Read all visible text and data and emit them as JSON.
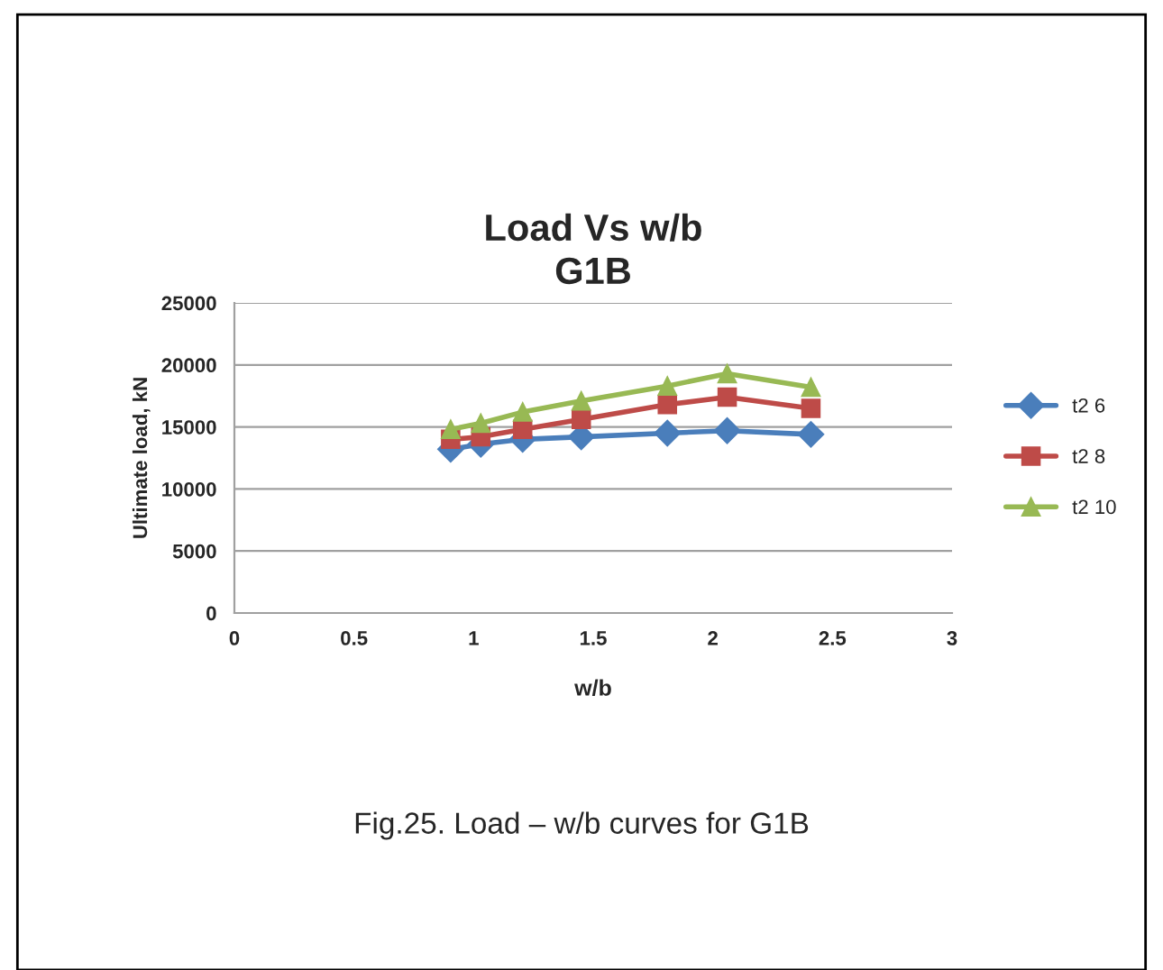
{
  "chart_data": {
    "type": "line",
    "title": "Load Vs w/b\nG1B",
    "xlabel": "w/b",
    "ylabel": "Ultimate load, kN",
    "xlim": [
      0,
      3
    ],
    "xticks": [
      0,
      0.5,
      1,
      1.5,
      2,
      2.5,
      3
    ],
    "ylim": [
      0,
      25000
    ],
    "yticks": [
      0,
      5000,
      10000,
      15000,
      20000,
      25000
    ],
    "grid": "y",
    "legend": "right",
    "series": [
      {
        "name": "t2 6",
        "color": "#4a7ebb",
        "marker": "diamond",
        "x": [
          0.904,
          1.03,
          1.205,
          1.45,
          1.81,
          2.06,
          2.41
        ],
        "values": [
          13200,
          13600,
          14000,
          14200,
          14500,
          14700,
          14400
        ]
      },
      {
        "name": "t2 8",
        "color": "#be4b48",
        "marker": "square",
        "x": [
          0.904,
          1.03,
          1.205,
          1.45,
          1.81,
          2.06,
          2.41
        ],
        "values": [
          14000,
          14200,
          14800,
          15600,
          16800,
          17400,
          16500
        ]
      },
      {
        "name": "t2 10",
        "color": "#98b954",
        "marker": "triangle",
        "x": [
          0.904,
          1.03,
          1.205,
          1.45,
          1.81,
          2.06,
          2.41
        ],
        "values": [
          14800,
          15300,
          16200,
          17100,
          18300,
          19300,
          18200
        ]
      }
    ],
    "annotations": [
      "Fig.25. Load – w/b curves for G1B"
    ]
  }
}
